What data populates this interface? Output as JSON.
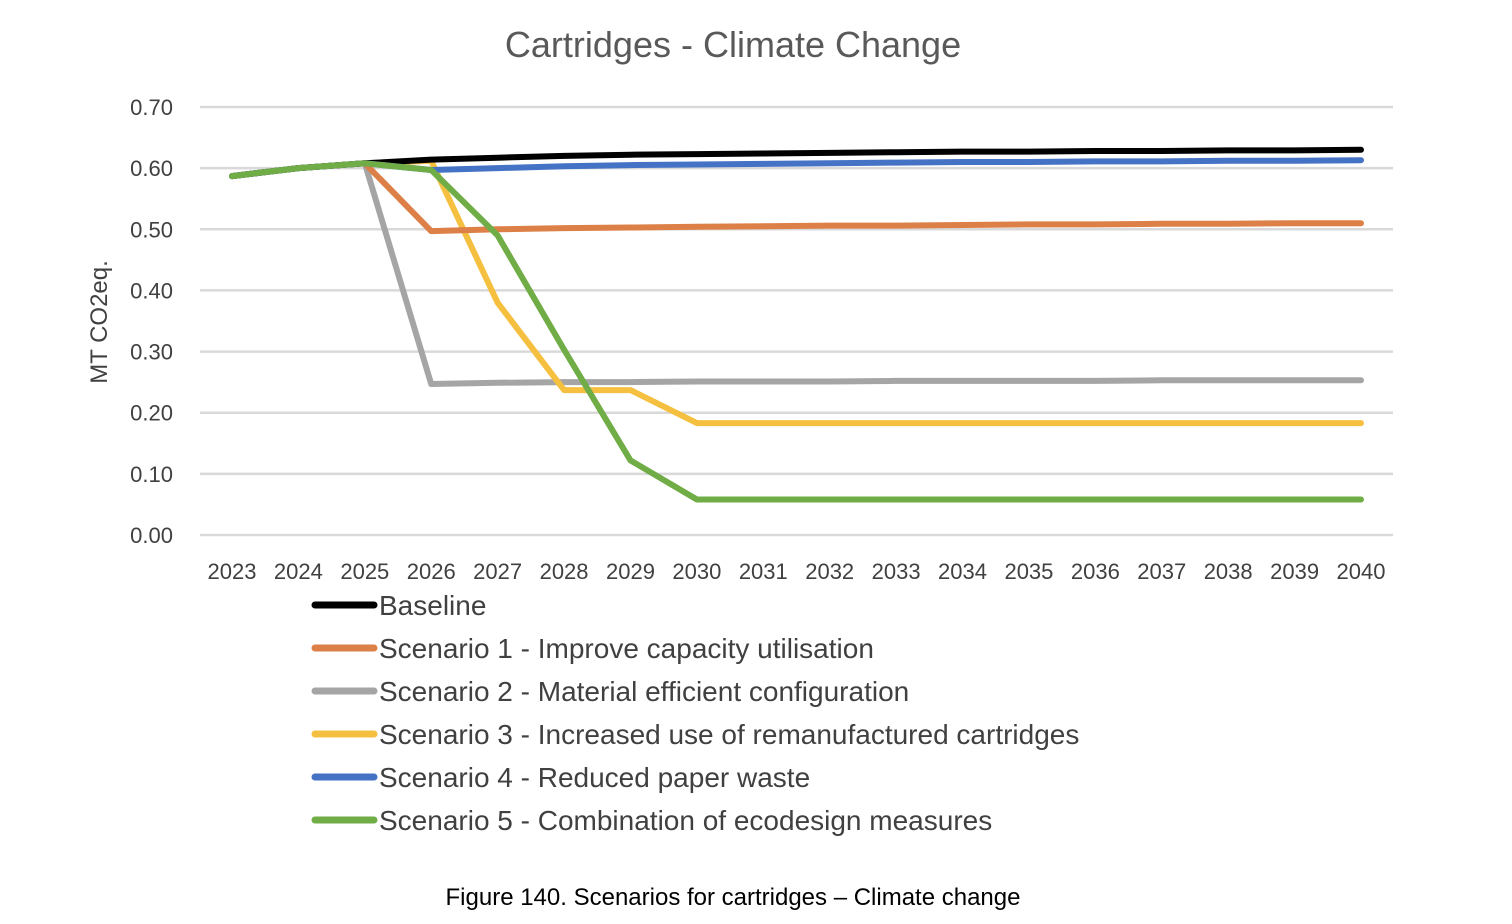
{
  "chart_data": {
    "type": "line",
    "title": "Cartridges - Climate Change",
    "ylabel": "MT CO2eq.",
    "xlabel": "",
    "ylim": [
      0,
      0.7
    ],
    "yticks": [
      "0.00",
      "0.10",
      "0.20",
      "0.30",
      "0.40",
      "0.50",
      "0.60",
      "0.70"
    ],
    "categories": [
      "2023",
      "2024",
      "2025",
      "2026",
      "2027",
      "2028",
      "2029",
      "2030",
      "2031",
      "2032",
      "2033",
      "2034",
      "2035",
      "2036",
      "2037",
      "2038",
      "2039",
      "2040"
    ],
    "grid": true,
    "legend_position": "bottom",
    "series": [
      {
        "name": "Baseline",
        "color": "#000000",
        "values": [
          0.587,
          0.6,
          0.608,
          0.614,
          0.617,
          0.62,
          0.622,
          0.623,
          0.624,
          0.625,
          0.626,
          0.627,
          0.627,
          0.628,
          0.628,
          0.629,
          0.629,
          0.63
        ]
      },
      {
        "name": "Scenario 1 - Improve capacity utilisation",
        "color": "#dd8047",
        "values": [
          0.587,
          0.6,
          0.608,
          0.497,
          0.5,
          0.502,
          0.503,
          0.504,
          0.505,
          0.506,
          0.506,
          0.507,
          0.508,
          0.508,
          0.509,
          0.509,
          0.51,
          0.51
        ]
      },
      {
        "name": "Scenario 2 - Material efficient configuration",
        "color": "#a5a5a5",
        "values": [
          0.587,
          0.6,
          0.608,
          0.247,
          0.249,
          0.25,
          0.25,
          0.251,
          0.251,
          0.251,
          0.252,
          0.252,
          0.252,
          0.252,
          0.253,
          0.253,
          0.253,
          0.253
        ]
      },
      {
        "name": "Scenario 3 - Increased use of remanufactured cartridges",
        "color": "#f5c040",
        "values": [
          0.587,
          0.6,
          0.608,
          0.612,
          0.38,
          0.237,
          0.237,
          0.183,
          0.183,
          0.183,
          0.183,
          0.183,
          0.183,
          0.183,
          0.183,
          0.183,
          0.183,
          0.183
        ]
      },
      {
        "name": "Scenario 4 - Reduced paper waste",
        "color": "#4472c4",
        "values": [
          0.587,
          0.6,
          0.608,
          0.597,
          0.6,
          0.603,
          0.605,
          0.606,
          0.607,
          0.608,
          0.609,
          0.61,
          0.61,
          0.611,
          0.611,
          0.612,
          0.612,
          0.613
        ]
      },
      {
        "name": "Scenario 5 - Combination of ecodesign measures",
        "color": "#70ad47",
        "values": [
          0.587,
          0.6,
          0.608,
          0.597,
          0.49,
          0.303,
          0.122,
          0.058,
          0.058,
          0.058,
          0.058,
          0.058,
          0.058,
          0.058,
          0.058,
          0.058,
          0.058,
          0.058
        ]
      }
    ]
  },
  "caption": "Figure 140. Scenarios for cartridges – Climate change"
}
